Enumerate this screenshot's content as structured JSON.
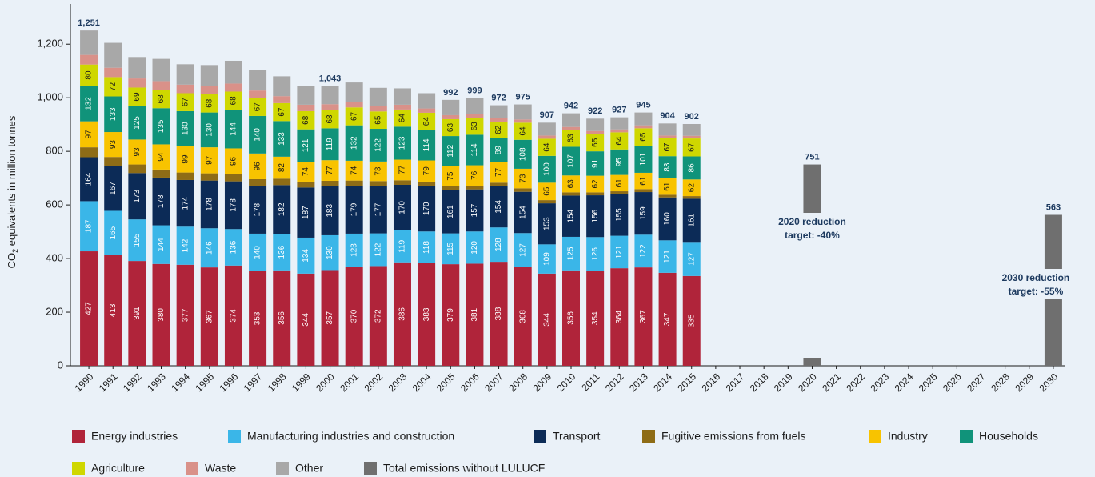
{
  "chart_data": {
    "type": "stacked-bar",
    "ylabel": {
      "pre": "CO",
      "sub": "2",
      "post": " equivalents in million tonnes"
    },
    "categories": [
      "1990",
      "1991",
      "1992",
      "1993",
      "1994",
      "1995",
      "1996",
      "1997",
      "1998",
      "1999",
      "2000",
      "2001",
      "2002",
      "2003",
      "2004",
      "2005",
      "2006",
      "2007",
      "2008",
      "2009",
      "2010",
      "2011",
      "2012",
      "2013",
      "2014",
      "2015",
      "2016",
      "2017",
      "2018",
      "2019",
      "2020",
      "2021",
      "2022",
      "2023",
      "2024",
      "2025",
      "2026",
      "2027",
      "2028",
      "2029",
      "2030"
    ],
    "ylim": [
      0,
      1350
    ],
    "yticks": [
      0,
      200,
      400,
      600,
      800,
      {
        "value": 1000,
        "label": "1,000"
      },
      {
        "value": 1200,
        "label": "1,200"
      }
    ],
    "series": [
      {
        "name": "Energy industries",
        "color": "#b0243a",
        "labeled": true,
        "label_color": "#ffffff",
        "values": [
          427,
          413,
          391,
          380,
          377,
          367,
          374,
          353,
          356,
          344,
          357,
          370,
          372,
          386,
          383,
          379,
          381,
          388,
          368,
          344,
          356,
          354,
          364,
          367,
          347,
          335,
          null,
          null,
          null,
          null,
          null,
          null,
          null,
          null,
          null,
          null,
          null,
          null,
          null,
          null,
          null
        ]
      },
      {
        "name": "Manufacturing industries and construction",
        "color": "#3ab6e8",
        "labeled": true,
        "label_color": "#ffffff",
        "values": [
          187,
          165,
          155,
          144,
          142,
          146,
          136,
          140,
          136,
          134,
          130,
          123,
          122,
          119,
          118,
          115,
          120,
          128,
          127,
          109,
          125,
          126,
          121,
          122,
          121,
          127,
          null,
          null,
          null,
          null,
          null,
          null,
          null,
          null,
          null,
          null,
          null,
          null,
          null,
          null,
          null
        ]
      },
      {
        "name": "Transport",
        "color": "#0c2b57",
        "labeled": true,
        "label_color": "#ffffff",
        "values": [
          164,
          167,
          173,
          178,
          174,
          178,
          178,
          178,
          182,
          187,
          183,
          179,
          177,
          170,
          170,
          161,
          157,
          154,
          154,
          153,
          154,
          156,
          155,
          159,
          160,
          161,
          null,
          null,
          null,
          null,
          null,
          null,
          null,
          null,
          null,
          null,
          null,
          null,
          null,
          null,
          null
        ]
      },
      {
        "name": "Fugitive emissions from fuels",
        "color": "#8e6c16",
        "labeled": false,
        "label_color": "#ffffff",
        "values": [
          37,
          34,
          32,
          30,
          28,
          27,
          27,
          25,
          24,
          22,
          20,
          19,
          18,
          17,
          16,
          15,
          14,
          13,
          13,
          12,
          12,
          11,
          11,
          11,
          10,
          10,
          null,
          null,
          null,
          null,
          null,
          null,
          null,
          null,
          null,
          null,
          null,
          null,
          null,
          null,
          null
        ]
      },
      {
        "name": "Industry",
        "color": "#f8c300",
        "labeled": true,
        "label_color": "#1a1a1a",
        "values": [
          97,
          93,
          93,
          94,
          99,
          97,
          96,
          96,
          82,
          74,
          77,
          74,
          73,
          77,
          79,
          75,
          76,
          77,
          73,
          65,
          63,
          62,
          61,
          61,
          61,
          62,
          null,
          null,
          null,
          null,
          null,
          null,
          null,
          null,
          null,
          null,
          null,
          null,
          null,
          null,
          null
        ]
      },
      {
        "name": "Households",
        "color": "#10937a",
        "labeled": true,
        "label_color": "#ffffff",
        "values": [
          132,
          133,
          125,
          135,
          130,
          130,
          144,
          140,
          133,
          121,
          119,
          132,
          122,
          123,
          114,
          112,
          114,
          89,
          108,
          100,
          107,
          91,
          95,
          101,
          83,
          86,
          null,
          null,
          null,
          null,
          null,
          null,
          null,
          null,
          null,
          null,
          null,
          null,
          null,
          null,
          null
        ]
      },
      {
        "name": "Agriculture",
        "color": "#cfd700",
        "labeled": true,
        "label_color": "#1a1a1a",
        "values": [
          80,
          72,
          69,
          68,
          67,
          68,
          68,
          67,
          67,
          68,
          68,
          67,
          65,
          64,
          64,
          63,
          63,
          62,
          64,
          64,
          63,
          65,
          64,
          65,
          67,
          67,
          null,
          null,
          null,
          null,
          null,
          null,
          null,
          null,
          null,
          null,
          null,
          null,
          null,
          null,
          null
        ]
      },
      {
        "name": "Waste",
        "color": "#d99189",
        "labeled": false,
        "label_color": "#ffffff",
        "values": [
          36,
          35,
          34,
          33,
          32,
          31,
          30,
          28,
          26,
          24,
          22,
          20,
          19,
          18,
          16,
          15,
          14,
          13,
          12,
          12,
          11,
          11,
          11,
          11,
          10,
          10,
          null,
          null,
          null,
          null,
          null,
          null,
          null,
          null,
          null,
          null,
          null,
          null,
          null,
          null,
          null
        ]
      },
      {
        "name": "Other",
        "color": "#a8a8a8",
        "labeled": false,
        "label_color": "#ffffff",
        "values": [
          91,
          93,
          80,
          83,
          76,
          78,
          85,
          78,
          74,
          71,
          67,
          73,
          69,
          61,
          57,
          57,
          60,
          48,
          56,
          48,
          51,
          46,
          45,
          48,
          45,
          44,
          null,
          null,
          null,
          null,
          null,
          null,
          null,
          null,
          null,
          null,
          null,
          null,
          null,
          null,
          null
        ]
      },
      {
        "name": "Total emissions without LULUCF",
        "color": "#6f6f6f",
        "labeled": false,
        "label_color": "#ffffff",
        "values": [
          null,
          null,
          null,
          null,
          null,
          null,
          null,
          null,
          null,
          null,
          null,
          null,
          null,
          null,
          null,
          null,
          null,
          null,
          null,
          null,
          null,
          null,
          null,
          null,
          null,
          null,
          null,
          null,
          null,
          null,
          751,
          null,
          null,
          null,
          null,
          null,
          null,
          null,
          null,
          null,
          563
        ]
      }
    ],
    "totals": [
      1251,
      null,
      null,
      null,
      null,
      null,
      null,
      null,
      null,
      null,
      1043,
      null,
      null,
      null,
      null,
      992,
      999,
      972,
      975,
      907,
      942,
      922,
      927,
      945,
      904,
      902,
      null,
      null,
      null,
      null,
      751,
      null,
      null,
      null,
      null,
      null,
      null,
      null,
      null,
      null,
      563
    ],
    "total_labels": [
      "1,251",
      null,
      null,
      null,
      null,
      null,
      null,
      null,
      null,
      null,
      "1,043",
      null,
      null,
      null,
      null,
      "992",
      "999",
      "972",
      "975",
      "907",
      "942",
      "922",
      "927",
      "945",
      "904",
      "902",
      null,
      null,
      null,
      null,
      "751",
      null,
      null,
      null,
      null,
      null,
      null,
      null,
      null,
      null,
      "563"
    ],
    "annotations": [
      {
        "category": 30,
        "lines": [
          "2020 reduction",
          "target: -40%"
        ]
      },
      {
        "category": 40,
        "lines": [
          "2030 reduction",
          "target: -55%"
        ]
      }
    ]
  }
}
